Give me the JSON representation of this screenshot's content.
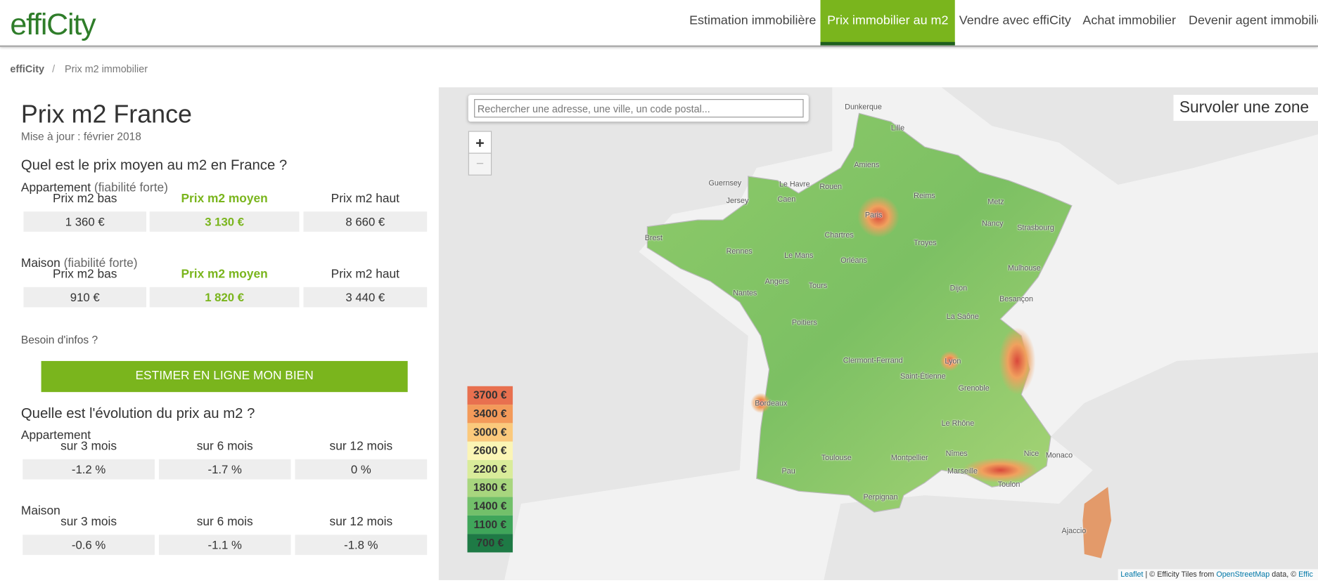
{
  "header": {
    "logo": "effiCity",
    "nav": [
      "Estimation immobilière",
      "Prix immobilier au m2",
      "Vendre avec effiCity",
      "Achat immobilier",
      "Devenir agent immobilier"
    ]
  },
  "breadcrumb": {
    "home": "effiCity",
    "separator": "/",
    "current": "Prix m2 immobilier"
  },
  "panel": {
    "title": "Prix m2 France",
    "updated": "Mise à jour : février 2018",
    "price_heading": "Quel est le prix moyen au m2 en France ?",
    "appartement": {
      "label": "Appartement",
      "reliability": "(fiabilité forte)",
      "columns": [
        "Prix m2 bas",
        "Prix m2 moyen",
        "Prix m2 haut"
      ],
      "values": [
        "1 360 €",
        "3 130 €",
        "8 660 €"
      ]
    },
    "maison": {
      "label": "Maison",
      "reliability": "(fiabilité forte)",
      "columns": [
        "Prix m2 bas",
        "Prix m2 moyen",
        "Prix m2 haut"
      ],
      "values": [
        "910 €",
        "1 820 €",
        "3 440 €"
      ]
    },
    "help": "Besoin d'infos ?",
    "button": "ESTIMER EN LIGNE MON BIEN",
    "evolution_heading": "Quelle est l'évolution du prix au m2 ?",
    "evo_appartement": {
      "label": "Appartement",
      "columns": [
        "sur 3 mois",
        "sur 6 mois",
        "sur 12 mois"
      ],
      "values": [
        "-1.2 %",
        "-1.7 %",
        "0 %"
      ]
    },
    "evo_maison": {
      "label": "Maison",
      "columns": [
        "sur 3 mois",
        "sur 6 mois",
        "sur 12 mois"
      ],
      "values": [
        "-0.6 %",
        "-1.1 %",
        "-1.8 %"
      ]
    }
  },
  "map": {
    "search_placeholder": "Rechercher une adresse, une ville, un code postal...",
    "zoom_in": "+",
    "zoom_out": "−",
    "hover": "Survoler une zone",
    "legend": [
      "3700 €",
      "3400 €",
      "3000 €",
      "2600 €",
      "2200 €",
      "1800 €",
      "1400 €",
      "1100 €",
      "700 €"
    ],
    "attribution": {
      "leaflet": "Leaflet",
      "text": "| © Efficity Tiles from",
      "osm": "OpenStreetMap",
      "rest": "data, ©",
      "efficity": "Effic"
    },
    "cities": [
      "Dunkerque",
      "Lille",
      "Amiens",
      "Guernsey",
      "Jersey",
      "Le Havre",
      "Rouen",
      "Caen",
      "Reims",
      "Paris",
      "Metz",
      "Nancy",
      "Strasbourg",
      "Brest",
      "Chartres",
      "Troyes",
      "Rennes",
      "Le Mans",
      "Orléans",
      "Mulhouse",
      "Angers",
      "Tours",
      "Nantes",
      "Dijon",
      "Besançon",
      "La Saône",
      "Poitiers",
      "Clermont-Ferrand",
      "Lyon",
      "Saint-Étienne",
      "Grenoble",
      "Bordeaux",
      "Le Rhône",
      "Toulouse",
      "Montpellier",
      "Nîmes",
      "Nice",
      "Monaco",
      "Pau",
      "Marseille",
      "Toulon",
      "Perpignan",
      "Ajaccio"
    ]
  }
}
